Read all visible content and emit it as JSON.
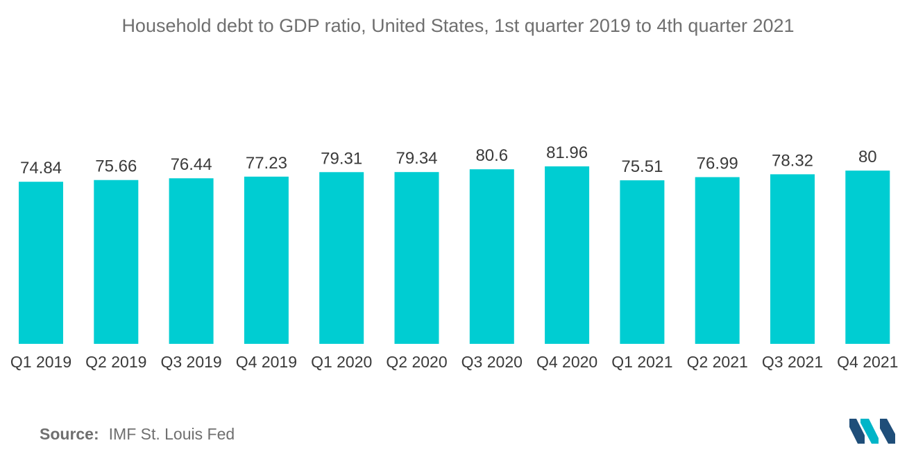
{
  "chart_data": {
    "type": "bar",
    "title": "Household debt to GDP ratio, United States, 1st quarter 2019 to 4th quarter 2021",
    "categories": [
      "Q1 2019",
      "Q2 2019",
      "Q3 2019",
      "Q4 2019",
      "Q1 2020",
      "Q2 2020",
      "Q3 2020",
      "Q4 2020",
      "Q1 2021",
      "Q2 2021",
      "Q3 2021",
      "Q4 2021"
    ],
    "values": [
      74.84,
      75.66,
      76.44,
      77.23,
      79.31,
      79.34,
      80.6,
      81.96,
      75.51,
      76.99,
      78.32,
      80
    ],
    "value_labels": [
      "74.84",
      "75.66",
      "76.44",
      "77.23",
      "79.31",
      "79.34",
      "80.6",
      "81.96",
      "75.51",
      "76.99",
      "78.32",
      "80"
    ],
    "xlabel": "",
    "ylabel": "",
    "ylim": [
      0,
      81.96
    ],
    "grid": false,
    "legend": "none",
    "bar_color": "#00cdd2"
  },
  "source": {
    "prefix": "Source:",
    "text": "IMF St. Louis Fed"
  },
  "logo": {
    "icon": "mordor-intelligence-logo-icon",
    "colors": [
      "#1f4e79",
      "#00b5c8"
    ]
  }
}
